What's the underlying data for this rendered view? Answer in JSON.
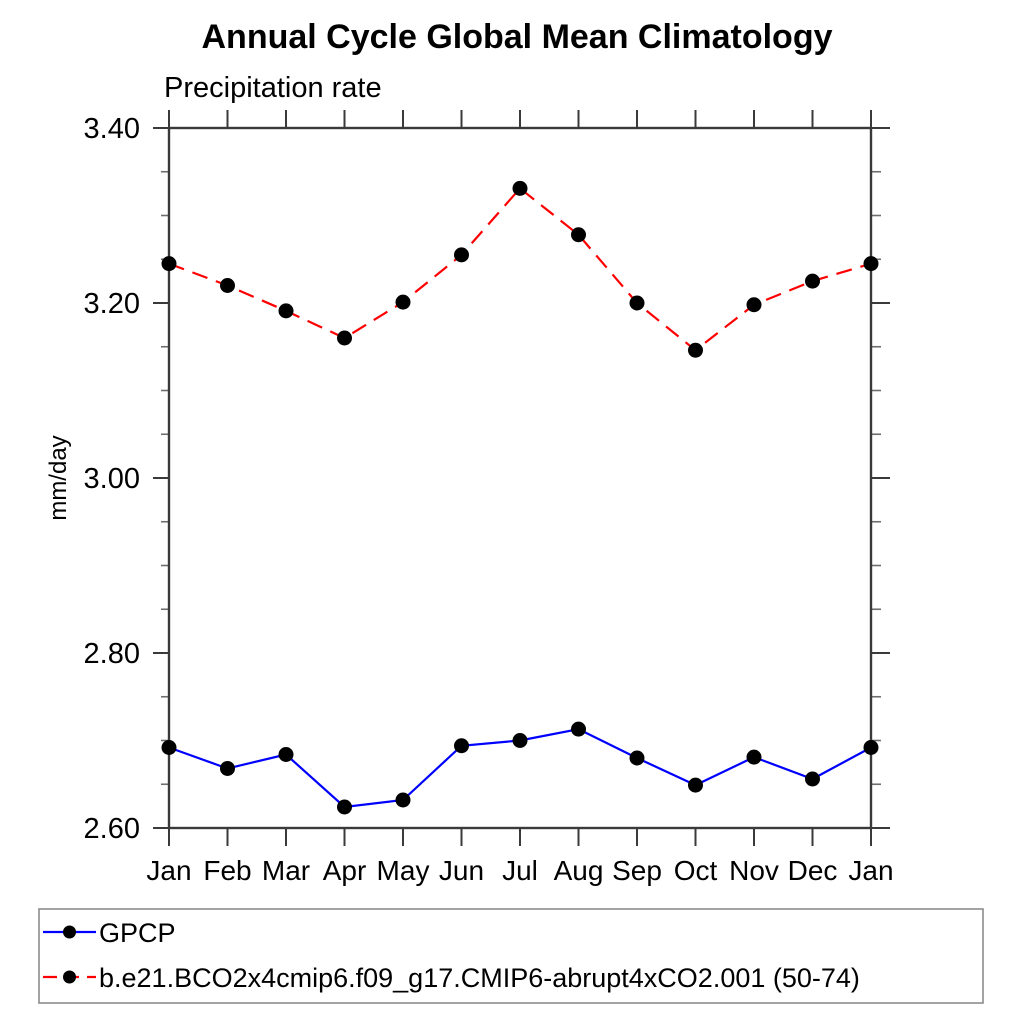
{
  "chart_data": {
    "type": "line",
    "title": "Annual Cycle Global Mean Climatology",
    "subtitle": "Precipitation rate",
    "ylabel": "mm/day",
    "x_categories": [
      "Jan",
      "Feb",
      "Mar",
      "Apr",
      "May",
      "Jun",
      "Jul",
      "Aug",
      "Sep",
      "Oct",
      "Nov",
      "Dec",
      "Jan"
    ],
    "ylim": [
      2.6,
      3.4
    ],
    "y_major_tick_step": 0.2,
    "y_minor_tick_step": 0.05,
    "y_tick_label_format": "2dp",
    "grid": false,
    "frame": "box-with-outward-ticks",
    "legend_position": "bottom-left-outside",
    "series": [
      {
        "name": "GPCP",
        "line_color": "#0000ff",
        "line_style": "solid",
        "marker": "filled-circle",
        "marker_color": "#000000",
        "values": [
          2.692,
          2.668,
          2.684,
          2.624,
          2.632,
          2.694,
          2.7,
          2.713,
          2.68,
          2.649,
          2.681,
          2.656,
          2.692
        ]
      },
      {
        "name": "b.e21.BCO2x4cmip6.f09_g17.CMIP6-abrupt4xCO2.001 (50-74)",
        "line_color": "#ff0000",
        "line_style": "dashed",
        "marker": "filled-circle",
        "marker_color": "#000000",
        "values": [
          3.245,
          3.22,
          3.191,
          3.16,
          3.201,
          3.255,
          3.331,
          3.278,
          3.2,
          3.146,
          3.198,
          3.225,
          3.245
        ]
      }
    ],
    "colors": {
      "axis": "#3a3a3a",
      "minor_tick": "#6e6e6e",
      "legend_border": "#8c8c8c",
      "text": "#000000"
    }
  }
}
